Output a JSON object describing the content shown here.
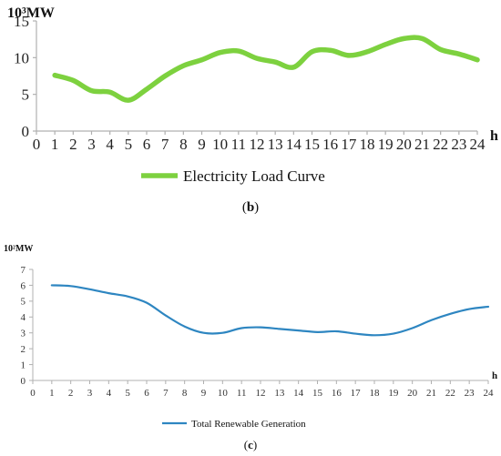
{
  "chart_data": [
    {
      "id": "b",
      "type": "line",
      "unit_label": "10³MW",
      "xlabel": "h",
      "x": [
        1,
        2,
        3,
        4,
        5,
        6,
        7,
        8,
        9,
        10,
        11,
        12,
        13,
        14,
        15,
        16,
        17,
        18,
        19,
        20,
        21,
        22,
        23,
        24
      ],
      "x_ticks": [
        0,
        1,
        2,
        3,
        4,
        5,
        6,
        7,
        8,
        9,
        10,
        11,
        12,
        13,
        14,
        15,
        16,
        17,
        18,
        19,
        20,
        21,
        22,
        23,
        24
      ],
      "xlim": [
        0,
        24
      ],
      "y_ticks": [
        0,
        5,
        10,
        15
      ],
      "ylim": [
        0,
        15
      ],
      "grid": false,
      "legend_position": "bottom-center",
      "series": [
        {
          "name": "Electricity Load Curve",
          "color": "#7DD13F",
          "values": [
            7.6,
            6.9,
            5.5,
            5.3,
            4.2,
            5.7,
            7.5,
            8.9,
            9.7,
            10.7,
            10.9,
            9.9,
            9.4,
            8.7,
            10.8,
            11.0,
            10.3,
            10.8,
            11.8,
            12.6,
            12.6,
            11.1,
            10.5,
            9.7
          ]
        }
      ],
      "caption": "(b)"
    },
    {
      "id": "c",
      "type": "line",
      "unit_label": "10²MW",
      "xlabel": "h",
      "x": [
        1,
        2,
        3,
        4,
        5,
        6,
        7,
        8,
        9,
        10,
        11,
        12,
        13,
        14,
        15,
        16,
        17,
        18,
        19,
        20,
        21,
        22,
        23,
        24
      ],
      "x_ticks": [
        0,
        1,
        2,
        3,
        4,
        5,
        6,
        7,
        8,
        9,
        10,
        11,
        12,
        13,
        14,
        15,
        16,
        17,
        18,
        19,
        20,
        21,
        22,
        23,
        24
      ],
      "xlim": [
        0,
        24
      ],
      "y_ticks": [
        0,
        1,
        2,
        3,
        4,
        5,
        6,
        7
      ],
      "ylim": [
        0,
        7
      ],
      "grid": false,
      "legend_position": "bottom-center",
      "series": [
        {
          "name": "Total Renewable Generation",
          "color": "#2E86C1",
          "values": [
            6.0,
            5.95,
            5.75,
            5.5,
            5.3,
            4.9,
            4.1,
            3.4,
            3.0,
            3.0,
            3.3,
            3.35,
            3.25,
            3.15,
            3.05,
            3.1,
            2.95,
            2.85,
            2.95,
            3.3,
            3.8,
            4.2,
            4.5,
            4.65
          ]
        }
      ],
      "caption": "(c)"
    }
  ]
}
